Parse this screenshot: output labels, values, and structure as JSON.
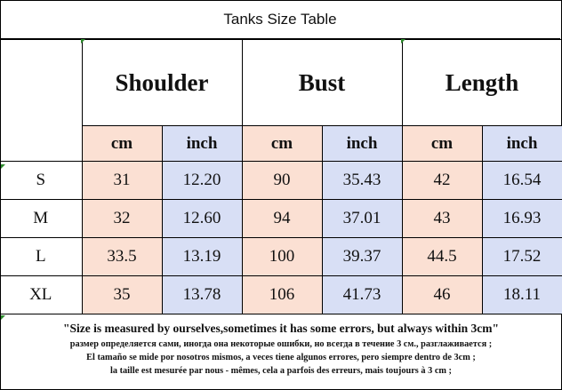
{
  "title": "Tanks Size Table",
  "groups": [
    "Shoulder",
    "Bust",
    "Length"
  ],
  "units": {
    "cm": "cm",
    "inch": "inch"
  },
  "rows": [
    {
      "size": "S",
      "shoulder_cm": "31",
      "shoulder_in": "12.20",
      "bust_cm": "90",
      "bust_in": "35.43",
      "length_cm": "42",
      "length_in": "16.54"
    },
    {
      "size": "M",
      "shoulder_cm": "32",
      "shoulder_in": "12.60",
      "bust_cm": "94",
      "bust_in": "37.01",
      "length_cm": "43",
      "length_in": "16.93"
    },
    {
      "size": "L",
      "shoulder_cm": "33.5",
      "shoulder_in": "13.19",
      "bust_cm": "100",
      "bust_in": "39.37",
      "length_cm": "44.5",
      "length_in": "17.52"
    },
    {
      "size": "XL",
      "shoulder_cm": "35",
      "shoulder_in": "13.78",
      "bust_cm": "106",
      "bust_in": "41.73",
      "length_cm": "46",
      "length_in": "18.11"
    }
  ],
  "notes": {
    "english": "\"Size is measured by ourselves,sometimes it has some errors, but always within 3cm\"",
    "russian": "размер определяется сами, иногда она некоторые ошибки, но всегда в течение 3 см., разглаживается ;",
    "spanish": "El tamaño se mide por nosotros mismos, a veces tiene algunos errores, pero siempre dentro de 3cm ;",
    "french": "la taille est mesurée par nous - mêmes, cela a parfois des erreurs, mais toujours à 3 cm ;"
  },
  "colors": {
    "cm_cell": "#fbe0d3",
    "inch_cell": "#d8dff5",
    "corner_marker": "#2c8a2c"
  }
}
